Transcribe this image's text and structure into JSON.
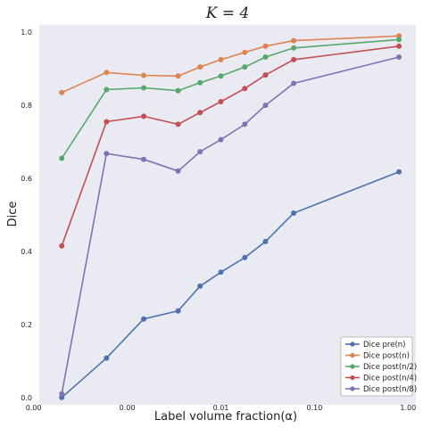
{
  "chart_data": {
    "type": "line",
    "title": "K = 4",
    "xlabel": "Label volume fraction(α)",
    "ylabel": "Dice",
    "x_scale": "log",
    "x_tick_labels": [
      "0.00",
      "0.00",
      "0.01",
      "0.10",
      "1.00"
    ],
    "y_ticks": [
      0.0,
      0.2,
      0.4,
      0.6,
      0.8,
      1.0
    ],
    "y_tick_labels": [
      "0.0",
      "0.2",
      "0.4",
      "0.6",
      "0.8",
      "1.0"
    ],
    "ylim": [
      -0.02,
      1.02
    ],
    "grid": false,
    "background": "#eaeaf2",
    "legend_position": "lower-right",
    "series": [
      {
        "name": "Dice pre(n)",
        "color": "#4c72b0",
        "points": [
          [
            0.0002,
            0.0
          ],
          [
            0.0006,
            0.108
          ],
          [
            0.0015,
            0.215
          ],
          [
            0.0035,
            0.237
          ],
          [
            0.006,
            0.305
          ],
          [
            0.01,
            0.343
          ],
          [
            0.018,
            0.383
          ],
          [
            0.03,
            0.427
          ],
          [
            0.06,
            0.505
          ],
          [
            0.8,
            0.618
          ]
        ]
      },
      {
        "name": "Dice post(n)",
        "color": "#dd8452",
        "points": [
          [
            0.0002,
            0.835
          ],
          [
            0.0006,
            0.89
          ],
          [
            0.0015,
            0.882
          ],
          [
            0.0035,
            0.88
          ],
          [
            0.006,
            0.905
          ],
          [
            0.01,
            0.925
          ],
          [
            0.018,
            0.945
          ],
          [
            0.03,
            0.962
          ],
          [
            0.06,
            0.977
          ],
          [
            0.8,
            0.99
          ]
        ]
      },
      {
        "name": "Dice post(n/2)",
        "color": "#55a868",
        "points": [
          [
            0.0002,
            0.655
          ],
          [
            0.0006,
            0.843
          ],
          [
            0.0015,
            0.848
          ],
          [
            0.0035,
            0.84
          ],
          [
            0.006,
            0.862
          ],
          [
            0.01,
            0.88
          ],
          [
            0.018,
            0.905
          ],
          [
            0.03,
            0.932
          ],
          [
            0.06,
            0.957
          ],
          [
            0.8,
            0.98
          ]
        ]
      },
      {
        "name": "Dice post(n/4)",
        "color": "#c44e52",
        "points": [
          [
            0.0002,
            0.415
          ],
          [
            0.0006,
            0.755
          ],
          [
            0.0015,
            0.77
          ],
          [
            0.0035,
            0.748
          ],
          [
            0.006,
            0.78
          ],
          [
            0.01,
            0.81
          ],
          [
            0.018,
            0.846
          ],
          [
            0.03,
            0.883
          ],
          [
            0.06,
            0.925
          ],
          [
            0.8,
            0.962
          ]
        ]
      },
      {
        "name": "Dice post(n/8)",
        "color": "#8172b3",
        "points": [
          [
            0.0002,
            0.01
          ],
          [
            0.0006,
            0.668
          ],
          [
            0.0015,
            0.652
          ],
          [
            0.0035,
            0.62
          ],
          [
            0.006,
            0.673
          ],
          [
            0.01,
            0.706
          ],
          [
            0.018,
            0.748
          ],
          [
            0.03,
            0.8
          ],
          [
            0.06,
            0.86
          ],
          [
            0.8,
            0.932
          ]
        ]
      }
    ]
  }
}
